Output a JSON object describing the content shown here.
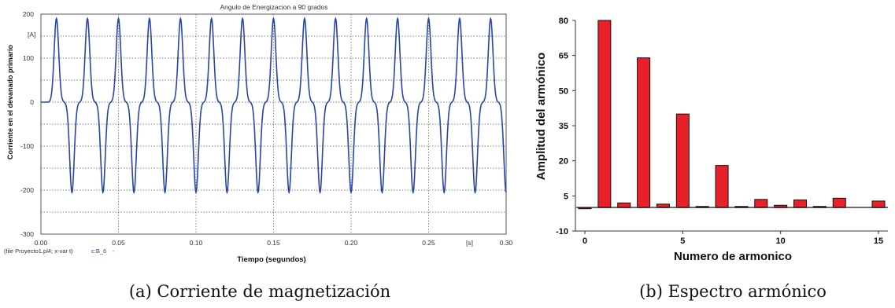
{
  "chart_data": [
    {
      "type": "line",
      "title": "Angulo de Energizacion a 90 grados",
      "xlabel": "Tiempo (segundos)",
      "ylabel": "Corriente en el devanado primario",
      "x_unit": "[s]",
      "y_unit": "[A]",
      "footer_note": "(file Proyecto1.pl4; x-var t)",
      "series": [
        {
          "name": "c:B_6",
          "color": "#2a45a8",
          "positive_peak_times": [
            0.01,
            0.03,
            0.05,
            0.07,
            0.09,
            0.11,
            0.13,
            0.15,
            0.17,
            0.19,
            0.21,
            0.23,
            0.25,
            0.27,
            0.29
          ],
          "negative_peak_times": [
            0.02,
            0.04,
            0.06,
            0.08,
            0.1,
            0.12,
            0.14,
            0.16,
            0.18,
            0.2,
            0.22,
            0.24,
            0.26,
            0.28,
            0.3
          ],
          "peak_value": 190,
          "trough_value": -205,
          "baseline": 0
        }
      ],
      "xlim": [
        0,
        0.3
      ],
      "ylim": [
        -300,
        200
      ],
      "xticks": [
        0.0,
        0.05,
        0.1,
        0.15,
        0.2,
        0.25,
        0.3
      ],
      "xtick_labels": [
        "0.00",
        "0.05",
        "0.10",
        "0.15",
        "0.20",
        "0.25",
        "0.30"
      ],
      "yticks": [
        200,
        100,
        0,
        -100,
        -200,
        -300
      ],
      "ytick_labels": [
        "200",
        "100",
        "0",
        "-100",
        "-200",
        "-300"
      ],
      "grid": true,
      "caption": "(a) Corriente de magnetización"
    },
    {
      "type": "bar",
      "xlabel": "Numero de armonico",
      "ylabel": "Amplitud del armónico",
      "bar_color": "#e8202a",
      "categories": [
        0,
        1,
        2,
        3,
        4,
        5,
        6,
        7,
        8,
        9,
        10,
        11,
        12,
        13,
        14,
        15
      ],
      "values": [
        -0.5,
        80,
        2,
        64,
        1.5,
        40,
        0.5,
        18,
        0.5,
        3.5,
        1,
        3.3,
        0.5,
        4,
        0,
        2.8
      ],
      "xticks": [
        0,
        5,
        10,
        15
      ],
      "xtick_labels": [
        "0",
        "5",
        "10",
        "15"
      ],
      "yticks": [
        80,
        65,
        50,
        35,
        20,
        5,
        -10
      ],
      "ytick_labels": [
        "80",
        "65",
        "50",
        "35",
        "20",
        "5",
        "-10"
      ],
      "ylim": [
        -10,
        80
      ],
      "xlim": [
        -0.5,
        15.3
      ],
      "grid": false,
      "caption": "(b) Espectro armónico"
    }
  ]
}
